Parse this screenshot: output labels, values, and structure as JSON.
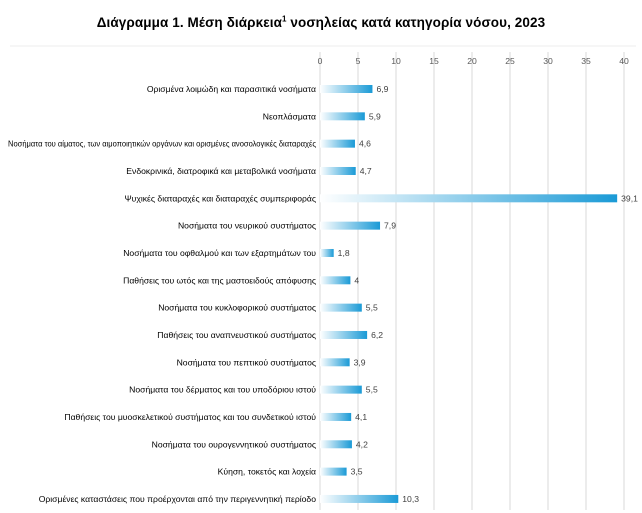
{
  "chart_data": {
    "type": "bar",
    "orientation": "horizontal",
    "title": {
      "main": "Διάγραμμα 1. Μέση διάρκεια",
      "footnote_mark": "1",
      "rest": " νοσηλείας κατά κατηγορία νόσου, 2023"
    },
    "categories": [
      "Ορισμένα λοιμώδη και παρασιτικά νοσήματα",
      "Νεοπλάσματα",
      "Νοσήματα του αίματος, των αιμοποιητικών οργάνων και ορισμένες ανοσολογικές διαταραχές",
      "Ενδοκρινικά, διατροφικά και μεταβολικά νοσήματα",
      "Ψυχικές διαταραχές  και διαταραχές  συμπεριφοράς",
      "Νοσήματα του νευρικού συστήματος",
      "Νοσήματα του οφθαλμού και των εξαρτημάτων του",
      "Παθήσεις του ωτός και της μαστοειδούς απόφυσης",
      "Νοσήματα του κυκλοφορικού συστήματος",
      "Παθήσεις του αναπνευστικού συστήματος",
      "Νοσήματα του πεπτικού συστήματος",
      "Νοσήματα του δέρματος και του υποδόριου ιστού",
      "Παθήσεις του μυοσκελετικού συστήματος και του συνδετικού ιστού",
      "Νοσήματα του ουρογεννητικού συστήματος",
      "Κύηση, τοκετός και λοχεία",
      "Ορισμένες καταστάσεις που προέρχονται  από την περιγεννητική περίοδο"
    ],
    "values": [
      6.9,
      5.9,
      4.6,
      4.7,
      39.1,
      7.9,
      1.8,
      4,
      5.5,
      6.2,
      3.9,
      5.5,
      4.1,
      4.2,
      3.5,
      10.3
    ],
    "value_labels": [
      "6,9",
      "5,9",
      "4,6",
      "4,7",
      "39,1",
      "7,9",
      "1,8",
      "4",
      "5,5",
      "6,2",
      "3,9",
      "5,5",
      "4,1",
      "4,2",
      "3,5",
      "10,3"
    ],
    "xlim": [
      0,
      40
    ],
    "xticks": [
      0,
      5,
      10,
      15,
      20,
      25,
      30,
      35,
      40
    ],
    "x_axis_position": "top",
    "xlabel": "",
    "ylabel": "",
    "grid": true,
    "legend": "none",
    "colors": {
      "bar_start": "#ffffff",
      "bar_end": "#1a9ad6",
      "grid": "#d9d9d9",
      "tick_text": "#595959",
      "label_text": "#000000",
      "value_text": "#404040"
    }
  }
}
